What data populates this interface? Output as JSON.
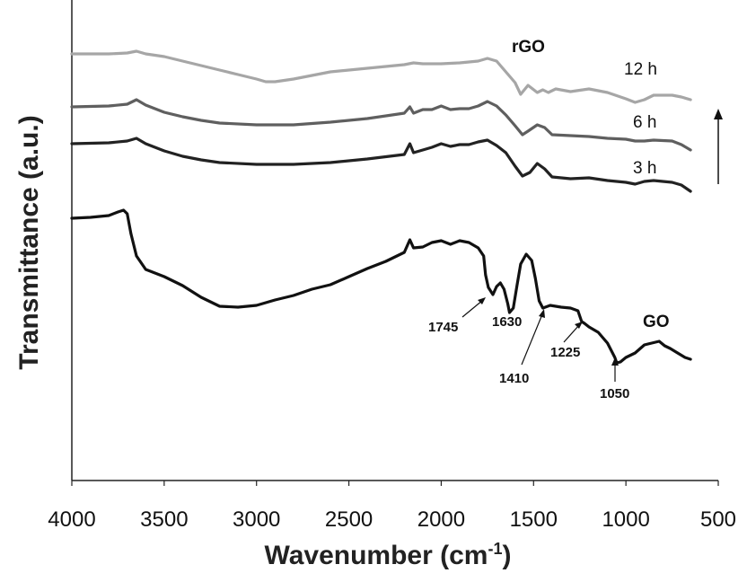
{
  "chart_data": {
    "type": "line",
    "title": "",
    "xlabel": "Wavenumber (cm",
    "xlabel_sup": "-1",
    "xlabel_close": ")",
    "ylabel": "Transmittance (a.u.)",
    "xlim": [
      4000,
      500
    ],
    "x_reversed": true,
    "x_ticks": [
      "4000",
      "3500",
      "3000",
      "2500",
      "2000",
      "1500",
      "1000",
      "500"
    ],
    "grid": false,
    "y_ticks": false,
    "series": [
      {
        "name": "12 h",
        "color": "#a6a6a6",
        "points": [
          [
            4000,
            60
          ],
          [
            3800,
            60
          ],
          [
            3700,
            59
          ],
          [
            3650,
            57
          ],
          [
            3600,
            60
          ],
          [
            3500,
            63
          ],
          [
            3400,
            68
          ],
          [
            3300,
            73
          ],
          [
            3200,
            78
          ],
          [
            3100,
            83
          ],
          [
            3000,
            88
          ],
          [
            2950,
            91
          ],
          [
            2900,
            91
          ],
          [
            2800,
            88
          ],
          [
            2600,
            80
          ],
          [
            2400,
            76
          ],
          [
            2200,
            72
          ],
          [
            2150,
            70
          ],
          [
            2100,
            71
          ],
          [
            2000,
            71
          ],
          [
            1900,
            70
          ],
          [
            1800,
            68
          ],
          [
            1750,
            65
          ],
          [
            1700,
            68
          ],
          [
            1650,
            80
          ],
          [
            1600,
            92
          ],
          [
            1570,
            105
          ],
          [
            1530,
            95
          ],
          [
            1480,
            103
          ],
          [
            1450,
            100
          ],
          [
            1420,
            103
          ],
          [
            1380,
            99
          ],
          [
            1300,
            102
          ],
          [
            1200,
            99
          ],
          [
            1100,
            103
          ],
          [
            1000,
            110
          ],
          [
            950,
            114
          ],
          [
            900,
            111
          ],
          [
            850,
            106
          ],
          [
            750,
            106
          ],
          [
            700,
            108
          ],
          [
            650,
            111
          ]
        ]
      },
      {
        "name": "6 h",
        "color": "#5f5f5f",
        "points": [
          [
            4000,
            119
          ],
          [
            3800,
            118
          ],
          [
            3700,
            116
          ],
          [
            3650,
            111
          ],
          [
            3600,
            117
          ],
          [
            3500,
            125
          ],
          [
            3400,
            130
          ],
          [
            3300,
            134
          ],
          [
            3200,
            137
          ],
          [
            3000,
            139
          ],
          [
            2800,
            139
          ],
          [
            2600,
            136
          ],
          [
            2400,
            132
          ],
          [
            2200,
            126
          ],
          [
            2170,
            119
          ],
          [
            2150,
            126
          ],
          [
            2100,
            122
          ],
          [
            2050,
            122
          ],
          [
            2000,
            118
          ],
          [
            1950,
            122
          ],
          [
            1900,
            121
          ],
          [
            1850,
            121
          ],
          [
            1800,
            118
          ],
          [
            1750,
            113
          ],
          [
            1700,
            118
          ],
          [
            1650,
            128
          ],
          [
            1600,
            140
          ],
          [
            1560,
            150
          ],
          [
            1530,
            146
          ],
          [
            1480,
            139
          ],
          [
            1440,
            142
          ],
          [
            1400,
            150
          ],
          [
            1300,
            151
          ],
          [
            1200,
            152
          ],
          [
            1100,
            154
          ],
          [
            1000,
            155
          ],
          [
            950,
            157
          ],
          [
            900,
            157
          ],
          [
            850,
            156
          ],
          [
            750,
            157
          ],
          [
            700,
            161
          ],
          [
            650,
            167
          ]
        ]
      },
      {
        "name": "3 h",
        "color": "#222222",
        "points": [
          [
            4000,
            160
          ],
          [
            3800,
            159
          ],
          [
            3700,
            157
          ],
          [
            3650,
            154
          ],
          [
            3600,
            160
          ],
          [
            3500,
            168
          ],
          [
            3400,
            174
          ],
          [
            3300,
            178
          ],
          [
            3200,
            181
          ],
          [
            3000,
            183
          ],
          [
            2800,
            183
          ],
          [
            2600,
            181
          ],
          [
            2400,
            177
          ],
          [
            2200,
            172
          ],
          [
            2170,
            160
          ],
          [
            2150,
            170
          ],
          [
            2100,
            167
          ],
          [
            2050,
            164
          ],
          [
            2000,
            160
          ],
          [
            1950,
            163
          ],
          [
            1900,
            161
          ],
          [
            1850,
            161
          ],
          [
            1800,
            158
          ],
          [
            1750,
            156
          ],
          [
            1700,
            162
          ],
          [
            1650,
            170
          ],
          [
            1600,
            185
          ],
          [
            1560,
            196
          ],
          [
            1520,
            192
          ],
          [
            1480,
            182
          ],
          [
            1440,
            188
          ],
          [
            1400,
            197
          ],
          [
            1300,
            199
          ],
          [
            1200,
            198
          ],
          [
            1100,
            201
          ],
          [
            1000,
            203
          ],
          [
            950,
            205
          ],
          [
            900,
            202
          ],
          [
            850,
            201
          ],
          [
            750,
            203
          ],
          [
            700,
            206
          ],
          [
            650,
            213
          ]
        ]
      },
      {
        "name": "GO",
        "color": "#111111",
        "points": [
          [
            4000,
            243
          ],
          [
            3900,
            242
          ],
          [
            3800,
            240
          ],
          [
            3750,
            236
          ],
          [
            3720,
            234
          ],
          [
            3700,
            238
          ],
          [
            3680,
            260
          ],
          [
            3650,
            285
          ],
          [
            3600,
            300
          ],
          [
            3500,
            308
          ],
          [
            3400,
            318
          ],
          [
            3300,
            331
          ],
          [
            3200,
            341
          ],
          [
            3100,
            342
          ],
          [
            3000,
            340
          ],
          [
            2900,
            334
          ],
          [
            2800,
            329
          ],
          [
            2700,
            322
          ],
          [
            2600,
            317
          ],
          [
            2500,
            308
          ],
          [
            2400,
            299
          ],
          [
            2300,
            291
          ],
          [
            2200,
            281
          ],
          [
            2170,
            267
          ],
          [
            2150,
            276
          ],
          [
            2100,
            275
          ],
          [
            2050,
            270
          ],
          [
            2000,
            268
          ],
          [
            1950,
            272
          ],
          [
            1900,
            268
          ],
          [
            1850,
            270
          ],
          [
            1800,
            276
          ],
          [
            1770,
            285
          ],
          [
            1760,
            306
          ],
          [
            1745,
            320
          ],
          [
            1720,
            328
          ],
          [
            1700,
            319
          ],
          [
            1680,
            315
          ],
          [
            1660,
            322
          ],
          [
            1640,
            338
          ],
          [
            1630,
            348
          ],
          [
            1610,
            343
          ],
          [
            1590,
            318
          ],
          [
            1570,
            294
          ],
          [
            1540,
            283
          ],
          [
            1510,
            290
          ],
          [
            1490,
            310
          ],
          [
            1470,
            335
          ],
          [
            1450,
            343
          ],
          [
            1410,
            340
          ],
          [
            1350,
            342
          ],
          [
            1300,
            343
          ],
          [
            1260,
            346
          ],
          [
            1240,
            358
          ],
          [
            1225,
            360
          ],
          [
            1200,
            364
          ],
          [
            1150,
            370
          ],
          [
            1100,
            382
          ],
          [
            1060,
            398
          ],
          [
            1050,
            404
          ],
          [
            1030,
            403
          ],
          [
            1000,
            398
          ],
          [
            950,
            393
          ],
          [
            900,
            384
          ],
          [
            860,
            382
          ],
          [
            820,
            380
          ],
          [
            790,
            385
          ],
          [
            760,
            388
          ],
          [
            720,
            393
          ],
          [
            680,
            398
          ],
          [
            650,
            400
          ]
        ]
      }
    ],
    "annotations": {
      "series_labels": [
        "12 h",
        "6 h",
        "3 h"
      ],
      "sample_labels": [
        "rGO",
        "GO"
      ],
      "peaks": [
        "1745",
        "1630",
        "1410",
        "1225",
        "1050"
      ],
      "arrow": "up"
    }
  }
}
